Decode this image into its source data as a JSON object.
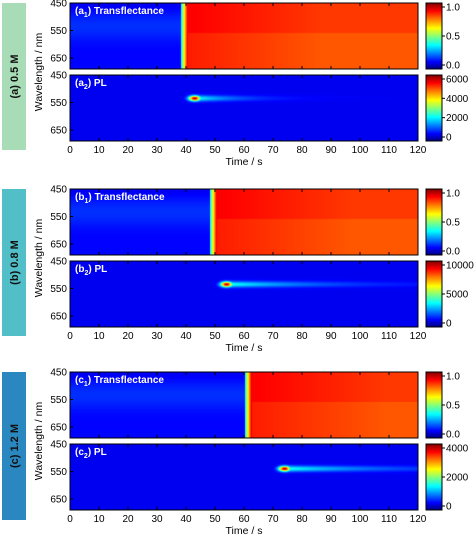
{
  "chart_data": {
    "type": "heatmap",
    "axis_labels": {
      "ylabel": "Wavelength / nm",
      "xlabel": "Time / s"
    },
    "xlim": [
      0,
      120
    ],
    "x_ticks": [
      "0",
      "10",
      "20",
      "30",
      "40",
      "50",
      "60",
      "70",
      "80",
      "90",
      "100",
      "110",
      "120"
    ],
    "ylim": [
      450,
      690
    ],
    "y_ticks": [
      "450",
      "550",
      "650"
    ],
    "colormap": [
      "#00007f",
      "#0000ff",
      "#00ffff",
      "#ffff00",
      "#ff0000",
      "#7f0000"
    ],
    "groups": [
      {
        "side_label": "(a) 0.5 M",
        "side_color": "#a8dcb6",
        "panels": [
          {
            "title_main": "(a",
            "title_sub": "1",
            "title_rest": ") Transflectance",
            "kind": "transflectance",
            "transition_time": 39,
            "colorbar_ticks": [
              "1.0",
              "0.5",
              "0.0"
            ]
          },
          {
            "title_main": "(a",
            "title_sub": "2",
            "title_rest": ") PL",
            "kind": "pl",
            "peak_time": 43,
            "peak_wavelength": 535,
            "tail_length": 14,
            "colorbar_ticks": [
              "6000",
              "4000",
              "2000",
              "0"
            ]
          }
        ]
      },
      {
        "side_label": "(b) 0.8 M",
        "side_color": "#52bfc8",
        "panels": [
          {
            "title_main": "(b",
            "title_sub": "1",
            "title_rest": ") Transflectance",
            "kind": "transflectance",
            "transition_time": 49,
            "colorbar_ticks": [
              "1.0",
              "0.5",
              "0.0"
            ]
          },
          {
            "title_main": "(b",
            "title_sub": "2",
            "title_rest": ") PL",
            "kind": "pl",
            "peak_time": 54,
            "peak_wavelength": 535,
            "tail_length": 30,
            "colorbar_ticks": [
              "10000",
              "5000",
              "0"
            ]
          }
        ]
      },
      {
        "side_label": "(c) 1.2 M",
        "side_color": "#2b87bf",
        "panels": [
          {
            "title_main": "(c",
            "title_sub": "1",
            "title_rest": ") Transflectance",
            "kind": "transflectance",
            "transition_time": 61,
            "colorbar_ticks": [
              "1.0",
              "0.5",
              "0.0"
            ]
          },
          {
            "title_main": "(c",
            "title_sub": "2",
            "title_rest": ") PL",
            "kind": "pl",
            "peak_time": 74,
            "peak_wavelength": 540,
            "tail_length": 32,
            "colorbar_ticks": [
              "4000",
              "2000",
              "0"
            ]
          }
        ]
      }
    ]
  }
}
